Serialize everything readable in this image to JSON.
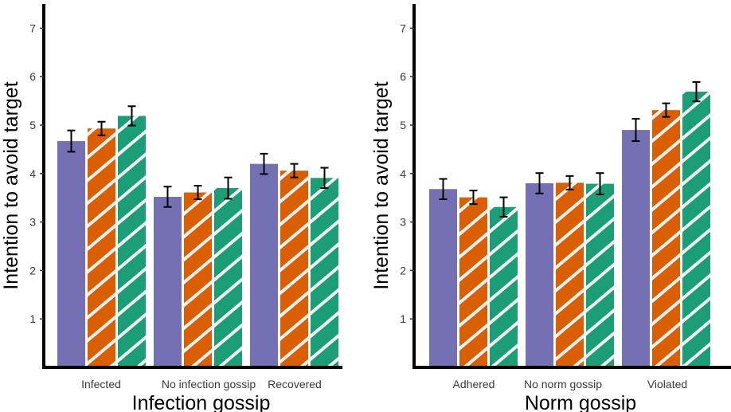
{
  "colors": {
    "purple": "#7570b3",
    "orange": "#d95f02",
    "green": "#1b9e77",
    "stripe_light": "#f2f2f2",
    "axis": "#000000"
  },
  "chart_data": [
    {
      "type": "bar",
      "xlabel": "Infection gossip",
      "ylabel": "Intention to avoid target",
      "ylim": [
        0,
        7.5
      ],
      "yticks": [
        1,
        2,
        3,
        4,
        5,
        6,
        7
      ],
      "categories": [
        "Infected",
        "No infection gossip",
        "Recovered"
      ],
      "series": [
        {
          "fill": "solid",
          "color": "#7570b3",
          "values": [
            4.67,
            3.52,
            4.2
          ],
          "err": [
            0.22,
            0.21,
            0.21
          ]
        },
        {
          "fill": "hatched",
          "color": "#d95f02",
          "values": [
            4.93,
            3.61,
            4.06
          ],
          "err": [
            0.14,
            0.14,
            0.14
          ]
        },
        {
          "fill": "hatched",
          "color": "#1b9e77",
          "values": [
            5.19,
            3.7,
            3.91
          ],
          "err": [
            0.2,
            0.22,
            0.21
          ]
        }
      ],
      "grid": false,
      "legend": "none"
    },
    {
      "type": "bar",
      "xlabel": "Norm gossip",
      "ylabel": "Intention to avoid target",
      "ylim": [
        0,
        7.5
      ],
      "yticks": [
        1,
        2,
        3,
        4,
        5,
        6,
        7
      ],
      "categories": [
        "Adhered",
        "No norm gossip",
        "Violated"
      ],
      "series": [
        {
          "fill": "solid",
          "color": "#7570b3",
          "values": [
            3.68,
            3.8,
            4.9
          ],
          "err": [
            0.21,
            0.21,
            0.23
          ]
        },
        {
          "fill": "hatched",
          "color": "#d95f02",
          "values": [
            3.51,
            3.81,
            5.31
          ],
          "err": [
            0.14,
            0.14,
            0.14
          ]
        },
        {
          "fill": "hatched",
          "color": "#1b9e77",
          "values": [
            3.31,
            3.79,
            5.69
          ],
          "err": [
            0.2,
            0.22,
            0.2
          ]
        }
      ],
      "grid": false,
      "legend": "none"
    }
  ]
}
